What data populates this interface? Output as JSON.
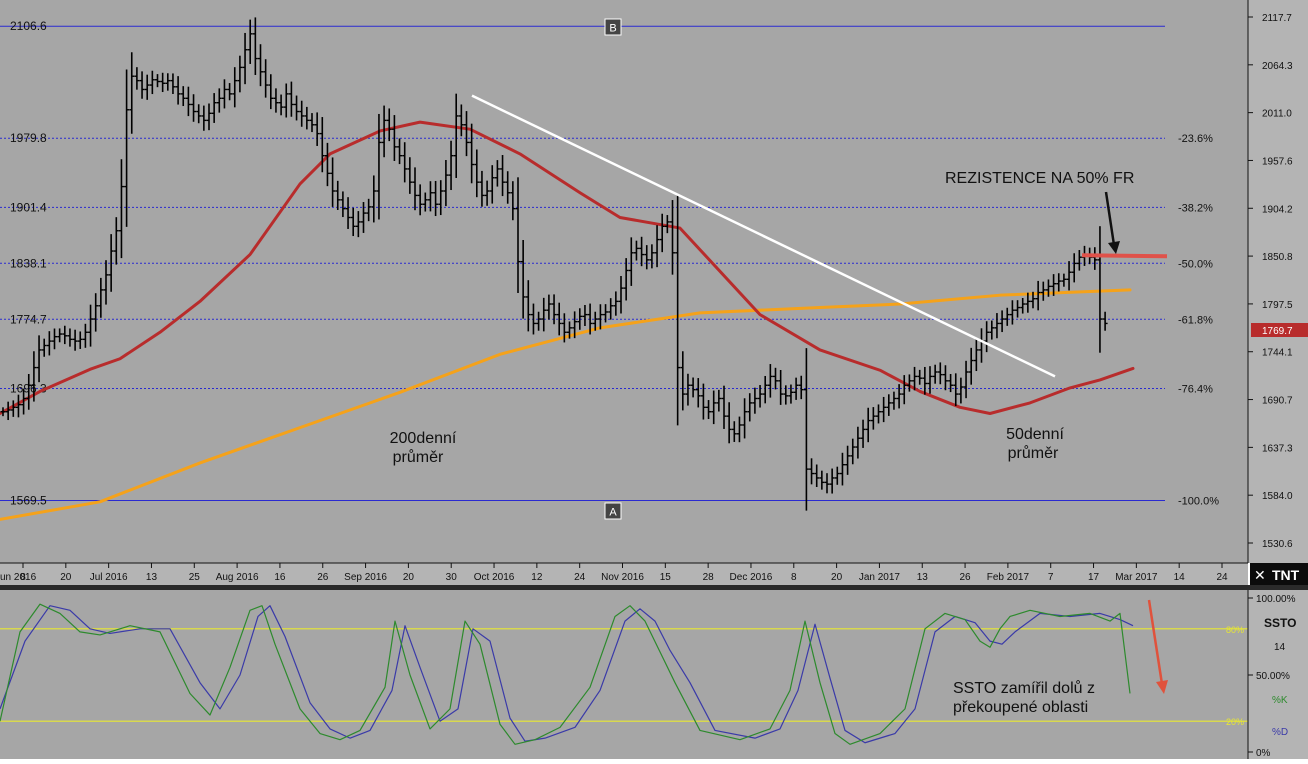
{
  "chart_data": [
    {
      "type": "ohlc",
      "title": "",
      "xlabel": "",
      "ylabel": "",
      "ylim": [
        1510,
        2125
      ],
      "grid": true,
      "right_axis_ticks": [
        "2117.7",
        "2064.3",
        "2011.0",
        "1957.6",
        "1904.2",
        "1850.8",
        "1797.5",
        "1744.1",
        "1690.7",
        "1637.3",
        "1584.0",
        "1530.6"
      ],
      "last_price_label": "1769.7",
      "x_axis_labels": [
        "8",
        "20",
        "Jul 2016",
        "13",
        "25",
        "Aug 2016",
        "16",
        "26",
        "Sep 2016",
        "20",
        "30",
        "Oct 2016",
        "12",
        "24",
        "Nov 2016",
        "15",
        "28",
        "Dec 2016",
        "8",
        "20",
        "Jan 2017",
        "13",
        "26",
        "Feb 2017",
        "7",
        "17",
        "Mar 2017",
        "14",
        "24"
      ],
      "x_axis_first_label": "un 2016",
      "fibonacci": {
        "levels": [
          {
            "price": 2106.6,
            "price_label": "2106.6",
            "pct_label": ""
          },
          {
            "price": 1979.8,
            "price_label": "1979.8",
            "pct_label": "-23.6%"
          },
          {
            "price": 1901.4,
            "price_label": "1901.4",
            "pct_label": "-38.2%"
          },
          {
            "price": 1838.1,
            "price_label": "1838.1",
            "pct_label": "-50.0%"
          },
          {
            "price": 1774.7,
            "price_label": "1774.7",
            "pct_label": "-61.8%"
          },
          {
            "price": 1696.3,
            "price_label": "1696.3",
            "pct_label": "-76.4%"
          },
          {
            "price": 1569.5,
            "price_label": "1569.5",
            "pct_label": "-100.0%"
          }
        ],
        "marker_top": "B",
        "marker_bottom": "A"
      },
      "ohlc_closes": [
        1670,
        1672,
        1675,
        1678,
        1685,
        1700,
        1720,
        1740,
        1745,
        1750,
        1755,
        1758,
        1756,
        1752,
        1750,
        1752,
        1760,
        1775,
        1790,
        1808,
        1825,
        1852,
        1875,
        1925,
        2012,
        2050,
        2045,
        2035,
        2040,
        2046,
        2044,
        2042,
        2045,
        2038,
        2030,
        2025,
        2018,
        2010,
        2005,
        2000,
        2008,
        2020,
        2025,
        2035,
        2030,
        2045,
        2060,
        2080,
        2098,
        2070,
        2055,
        2040,
        2025,
        2020,
        2015,
        2030,
        2018,
        2010,
        2005,
        2000,
        1995,
        1985,
        1960,
        1940,
        1920,
        1910,
        1900,
        1890,
        1880,
        1885,
        1895,
        1902,
        1920,
        1975,
        2000,
        1990,
        1970,
        1960,
        1945,
        1930,
        1915,
        1905,
        1910,
        1918,
        1905,
        1920,
        1938,
        1960,
        2005,
        1995,
        1975,
        1950,
        1930,
        1915,
        1920,
        1935,
        1945,
        1930,
        1918,
        1900,
        1840,
        1800,
        1780,
        1770,
        1775,
        1785,
        1792,
        1780,
        1770,
        1760,
        1765,
        1772,
        1778,
        1780,
        1770,
        1775,
        1780,
        1783,
        1790,
        1795,
        1810,
        1830,
        1850,
        1855,
        1848,
        1842,
        1850,
        1865,
        1880,
        1885,
        1850,
        1720,
        1690,
        1700,
        1695,
        1688,
        1675,
        1670,
        1680,
        1685,
        1665,
        1650,
        1645,
        1655,
        1670,
        1680,
        1685,
        1690,
        1700,
        1710,
        1705,
        1690,
        1688,
        1692,
        1700,
        1695,
        1605,
        1600,
        1595,
        1590,
        1588,
        1595,
        1600,
        1610,
        1620,
        1630,
        1640,
        1650,
        1660,
        1665,
        1670,
        1675,
        1680,
        1685,
        1690,
        1700,
        1705,
        1710,
        1708,
        1702,
        1710,
        1715,
        1712,
        1705,
        1700,
        1690,
        1698,
        1715,
        1728,
        1740,
        1750,
        1760,
        1765,
        1770,
        1775,
        1780,
        1785,
        1788,
        1792,
        1795,
        1798,
        1805,
        1808,
        1812,
        1815,
        1818,
        1820,
        1828,
        1838,
        1845,
        1848,
        1845,
        1842,
        1775,
        1770
      ],
      "series": [
        {
          "name": "200denní průměr",
          "color": "#f5a21a",
          "x": [
            0,
            100,
            200,
            300,
            400,
            500,
            510,
            600,
            700,
            820,
            900,
            1000,
            1130
          ],
          "y": [
            1548,
            1568,
            1612,
            1652,
            1692,
            1735,
            1738,
            1765,
            1782,
            1788,
            1792,
            1802,
            1808
          ]
        },
        {
          "name": "50denní průměr",
          "color": "#b82c2c",
          "x": [
            0,
            40,
            90,
            120,
            160,
            200,
            250,
            300,
            330,
            380,
            420,
            470,
            520,
            580,
            620,
            680,
            760,
            820,
            880,
            920,
            960,
            990,
            1030,
            1070,
            1100,
            1133
          ],
          "y": [
            1668,
            1693,
            1718,
            1730,
            1760,
            1795,
            1848,
            1928,
            1962,
            1988,
            1998,
            1990,
            1962,
            1918,
            1890,
            1878,
            1780,
            1740,
            1717,
            1693,
            1675,
            1668,
            1680,
            1697,
            1706,
            1719
          ]
        }
      ],
      "annotations": {
        "ma200_label_line1": "200denní",
        "ma200_label_line2": "průměr",
        "ma50_label_line1": "50denní",
        "ma50_label_line2": "průměr",
        "resistance_text": "REZISTENCE NA 50% FR"
      },
      "trendline": {
        "x1": 472,
        "y1": 2028,
        "x2": 1055,
        "y2": 1710
      }
    },
    {
      "type": "line",
      "title": "",
      "name": "SSTO",
      "period": "14",
      "ylim": [
        0,
        100
      ],
      "right_axis_ticks": [
        "100.00%",
        "50.00%",
        "0%"
      ],
      "level_lines": [
        {
          "value": 80,
          "label": "80%"
        },
        {
          "value": 20,
          "label": "20%"
        }
      ],
      "legend": [
        {
          "label": "%K",
          "color": "#2d8a2d"
        },
        {
          "label": "%D",
          "color": "#3a3aa8"
        }
      ],
      "series": [
        {
          "name": "%K",
          "color": "#2d8a2d",
          "x": [
            0,
            20,
            40,
            60,
            80,
            100,
            130,
            160,
            190,
            210,
            230,
            250,
            262,
            275,
            300,
            320,
            340,
            360,
            385,
            395,
            410,
            430,
            450,
            465,
            480,
            500,
            515,
            535,
            560,
            590,
            615,
            630,
            645,
            660,
            675,
            700,
            740,
            770,
            790,
            805,
            820,
            835,
            850,
            880,
            905,
            925,
            945,
            965,
            980,
            990,
            1000,
            1010,
            1030,
            1060,
            1090,
            1110,
            1120,
            1130
          ],
          "y": [
            20,
            78,
            96,
            90,
            78,
            76,
            82,
            78,
            38,
            24,
            55,
            92,
            95,
            70,
            28,
            12,
            8,
            14,
            42,
            85,
            50,
            15,
            28,
            85,
            70,
            18,
            5,
            8,
            16,
            42,
            88,
            95,
            85,
            65,
            45,
            14,
            8,
            15,
            40,
            85,
            45,
            12,
            5,
            12,
            28,
            80,
            90,
            86,
            72,
            68,
            80,
            88,
            92,
            88,
            90,
            85,
            90,
            38
          ]
        },
        {
          "name": "%D",
          "color": "#3a3aa8",
          "x": [
            0,
            25,
            50,
            70,
            90,
            110,
            140,
            170,
            200,
            220,
            240,
            258,
            270,
            285,
            310,
            330,
            350,
            370,
            392,
            405,
            420,
            440,
            458,
            473,
            490,
            510,
            525,
            545,
            575,
            600,
            625,
            640,
            655,
            670,
            690,
            715,
            755,
            780,
            798,
            815,
            830,
            845,
            865,
            895,
            915,
            935,
            955,
            975,
            990,
            1002,
            1015,
            1040,
            1070,
            1100,
            1120,
            1133
          ],
          "y": [
            28,
            72,
            95,
            92,
            80,
            77,
            80,
            80,
            45,
            28,
            50,
            88,
            95,
            75,
            32,
            15,
            9,
            14,
            40,
            82,
            55,
            20,
            28,
            80,
            72,
            22,
            7,
            9,
            16,
            40,
            85,
            93,
            85,
            66,
            45,
            14,
            9,
            15,
            40,
            83,
            48,
            14,
            6,
            12,
            28,
            78,
            88,
            84,
            72,
            70,
            78,
            90,
            88,
            90,
            86,
            82
          ]
        }
      ],
      "annotation_text_line1": "SSTO zamířil dolů z",
      "annotation_text_line2": "překoupené oblasti"
    }
  ],
  "branding": {
    "logo_text": "TNT"
  }
}
